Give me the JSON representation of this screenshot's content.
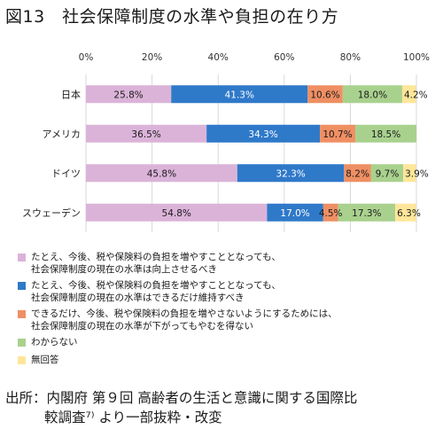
{
  "figure": {
    "title": "図13　社会保障制度の水準や負担の在り方"
  },
  "chart_data": {
    "type": "bar",
    "orientation": "horizontal",
    "stacked": true,
    "xlim": [
      0,
      100
    ],
    "x_ticks": [
      "0%",
      "20%",
      "40%",
      "60%",
      "80%",
      "100%"
    ],
    "categories": [
      "日本",
      "アメリカ",
      "ドイツ",
      "スウェーデン"
    ],
    "grid": true,
    "legend_position": "bottom",
    "series": [
      {
        "name": "たとえ、今後、税や保険料の負担を増やすこととなっても、\n社会保障制度の現在の水準は向上させるべき",
        "color": "#dbb3d9",
        "values": [
          25.8,
          36.5,
          45.8,
          54.8
        ],
        "labels": [
          "25.8%",
          "36.5%",
          "45.8%",
          "54.8%"
        ]
      },
      {
        "name": "たとえ、今後、税や保険料の負担を増やすこととなっても、\n社会保障制度の現在の水準はできるだけ維持すべき",
        "color": "#2f79c9",
        "values": [
          41.3,
          34.3,
          32.3,
          17.0
        ],
        "labels": [
          "41.3%",
          "34.3%",
          "32.3%",
          "17.0%"
        ]
      },
      {
        "name": "できるだけ、今後、税や保険料の負担を増やさないようにするためには、\n社会保障制度の現在の水準が下がってもやむを得ない",
        "color": "#ef8f63",
        "values": [
          10.6,
          10.7,
          8.2,
          4.5
        ],
        "labels": [
          "10.6%",
          "10.7%",
          "8.2%",
          "4.5%"
        ]
      },
      {
        "name": "わからない",
        "color": "#a9d18e",
        "values": [
          18.0,
          18.5,
          9.7,
          17.3
        ],
        "labels": [
          "18.0%",
          "18.5%",
          "9.7%",
          "17.3%"
        ]
      },
      {
        "name": "無回答",
        "color": "#ffe699",
        "values": [
          4.2,
          0,
          3.9,
          6.3
        ],
        "labels": [
          "4.2%",
          "",
          "3.9%",
          "6.3%"
        ]
      }
    ]
  },
  "source": {
    "line1": "出所：内閣府 第９回 高齢者の生活と意識に関する国際比",
    "line2": "較調査⁷⁾ より一部抜粋・改変"
  }
}
